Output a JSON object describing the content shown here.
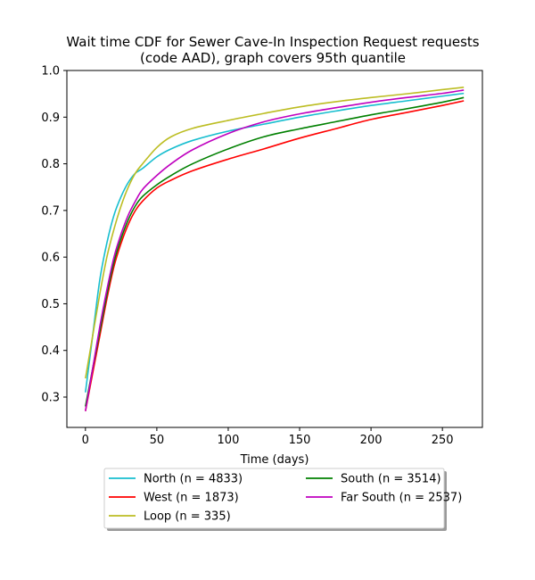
{
  "chart_data": {
    "type": "line",
    "title_lines": [
      "Wait time CDF for Sewer Cave-In Inspection Request  requests",
      "(code AAD), graph covers 95th quantile"
    ],
    "xlabel": "Time (days)",
    "ylabel": "",
    "xlim": [
      -13,
      278
    ],
    "ylim": [
      0.235,
      1.0
    ],
    "xticks": [
      0,
      50,
      100,
      150,
      200,
      250
    ],
    "yticks": [
      0.3,
      0.4,
      0.5,
      0.6,
      0.7,
      0.8,
      0.9,
      1.0
    ],
    "xtick_labels": [
      "0",
      "50",
      "100",
      "150",
      "200",
      "250"
    ],
    "ytick_labels": [
      "0.3",
      "0.4",
      "0.5",
      "0.6",
      "0.7",
      "0.8",
      "0.9",
      "1.0"
    ],
    "grid": false,
    "legend_position": "bottom-center",
    "series": [
      {
        "name": "North (n = 4833)",
        "color": "#17becf",
        "points": [
          [
            0,
            0.31
          ],
          [
            5,
            0.43
          ],
          [
            10,
            0.55
          ],
          [
            15,
            0.63
          ],
          [
            20,
            0.69
          ],
          [
            25,
            0.73
          ],
          [
            30,
            0.76
          ],
          [
            35,
            0.78
          ],
          [
            40,
            0.79
          ],
          [
            50,
            0.815
          ],
          [
            60,
            0.832
          ],
          [
            75,
            0.85
          ],
          [
            100,
            0.87
          ],
          [
            125,
            0.885
          ],
          [
            150,
            0.9
          ],
          [
            175,
            0.913
          ],
          [
            200,
            0.925
          ],
          [
            225,
            0.935
          ],
          [
            250,
            0.945
          ],
          [
            265,
            0.951
          ]
        ]
      },
      {
        "name": "West (n = 1873)",
        "color": "#ff0000",
        "points": [
          [
            0,
            0.27
          ],
          [
            5,
            0.35
          ],
          [
            10,
            0.43
          ],
          [
            15,
            0.51
          ],
          [
            20,
            0.58
          ],
          [
            25,
            0.63
          ],
          [
            30,
            0.67
          ],
          [
            35,
            0.7
          ],
          [
            40,
            0.72
          ],
          [
            50,
            0.748
          ],
          [
            60,
            0.765
          ],
          [
            75,
            0.785
          ],
          [
            100,
            0.81
          ],
          [
            125,
            0.832
          ],
          [
            150,
            0.855
          ],
          [
            175,
            0.875
          ],
          [
            200,
            0.895
          ],
          [
            225,
            0.91
          ],
          [
            250,
            0.925
          ],
          [
            265,
            0.935
          ]
        ]
      },
      {
        "name": "Loop (n = 335)",
        "color": "#bcbd22",
        "points": [
          [
            0,
            0.34
          ],
          [
            5,
            0.43
          ],
          [
            10,
            0.52
          ],
          [
            15,
            0.6
          ],
          [
            20,
            0.66
          ],
          [
            25,
            0.71
          ],
          [
            30,
            0.75
          ],
          [
            35,
            0.78
          ],
          [
            40,
            0.8
          ],
          [
            50,
            0.835
          ],
          [
            60,
            0.858
          ],
          [
            75,
            0.876
          ],
          [
            100,
            0.893
          ],
          [
            125,
            0.908
          ],
          [
            150,
            0.922
          ],
          [
            175,
            0.933
          ],
          [
            200,
            0.942
          ],
          [
            225,
            0.95
          ],
          [
            250,
            0.959
          ],
          [
            265,
            0.964
          ]
        ]
      },
      {
        "name": "South (n = 3514)",
        "color": "#008000",
        "points": [
          [
            0,
            0.28
          ],
          [
            5,
            0.36
          ],
          [
            10,
            0.44
          ],
          [
            15,
            0.52
          ],
          [
            20,
            0.59
          ],
          [
            25,
            0.64
          ],
          [
            30,
            0.68
          ],
          [
            35,
            0.71
          ],
          [
            40,
            0.73
          ],
          [
            50,
            0.755
          ],
          [
            60,
            0.775
          ],
          [
            75,
            0.8
          ],
          [
            100,
            0.832
          ],
          [
            125,
            0.858
          ],
          [
            150,
            0.875
          ],
          [
            175,
            0.89
          ],
          [
            200,
            0.905
          ],
          [
            225,
            0.918
          ],
          [
            250,
            0.932
          ],
          [
            265,
            0.942
          ]
        ]
      },
      {
        "name": "Far South (n = 2537)",
        "color": "#bf00bf",
        "points": [
          [
            0,
            0.27
          ],
          [
            5,
            0.36
          ],
          [
            10,
            0.45
          ],
          [
            15,
            0.53
          ],
          [
            20,
            0.6
          ],
          [
            25,
            0.65
          ],
          [
            30,
            0.69
          ],
          [
            35,
            0.72
          ],
          [
            40,
            0.745
          ],
          [
            50,
            0.775
          ],
          [
            60,
            0.8
          ],
          [
            75,
            0.83
          ],
          [
            100,
            0.865
          ],
          [
            125,
            0.89
          ],
          [
            150,
            0.907
          ],
          [
            175,
            0.92
          ],
          [
            200,
            0.932
          ],
          [
            225,
            0.942
          ],
          [
            250,
            0.951
          ],
          [
            265,
            0.958
          ]
        ]
      }
    ]
  }
}
